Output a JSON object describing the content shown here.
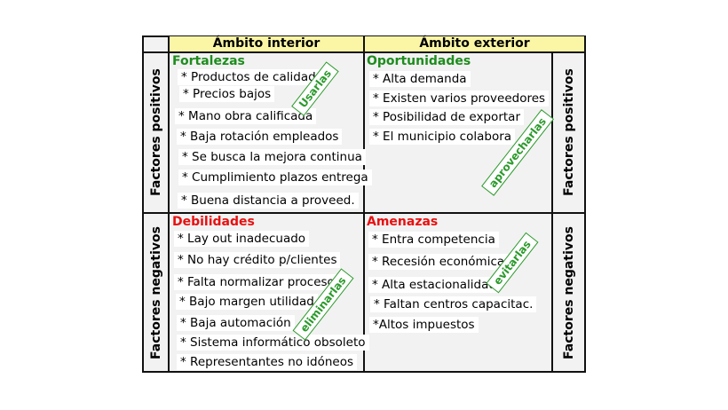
{
  "headers": {
    "interior": "Ámbito interior",
    "exterior": "Ámbito exterior"
  },
  "side_labels": {
    "positive": "Factores positivos",
    "negative": "Factores negativos"
  },
  "quadrants": {
    "fortalezas": {
      "title": "Fortalezas",
      "color": "#1e8c1e",
      "stamp": "Usarlas",
      "items": [
        "* Productos de calidad",
        "* Precios bajos",
        "* Mano obra calificada",
        "* Baja rotación empleados",
        "* Se busca la mejora continua",
        "* Cumplimiento plazos entrega",
        "* Buena distancia a proveed."
      ]
    },
    "oportunidades": {
      "title": "Oportunidades",
      "color": "#1e8c1e",
      "stamp": "aprovecharlas",
      "items": [
        "* Alta demanda",
        "* Existen varios proveedores",
        "* Posibilidad de exportar",
        "* El municipio colabora"
      ]
    },
    "debilidades": {
      "title": "Debilidades",
      "color": "#e81010",
      "stamp": "eliminarlas",
      "items": [
        "* Lay out inadecuado",
        "* No hay crédito p/clientes",
        "* Falta normalizar procesos",
        "* Bajo margen utilidad",
        "* Baja automación",
        "* Sistema informático obsoleto",
        "* Representantes no idóneos"
      ]
    },
    "amenazas": {
      "title": "Amenazas",
      "color": "#e81010",
      "stamp": "evitarlas",
      "items": [
        "* Entra competencia",
        "* Recesión económica",
        "* Alta estacionalidad",
        "* Faltan centros capacitac.",
        "*Altos impuestos"
      ]
    }
  }
}
